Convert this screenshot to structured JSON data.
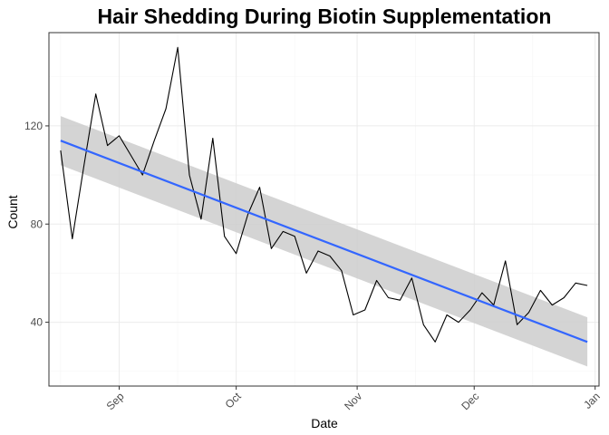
{
  "chart_data": {
    "type": "line",
    "title": "Hair Shedding During Biotin Supplementation",
    "xlabel": "Date",
    "ylabel": "Count",
    "x_ticks": [
      "Sep",
      "Oct",
      "Nov",
      "Dec",
      "Jan"
    ],
    "x_tick_dates": [
      "2023-09-01",
      "2023-10-01",
      "2023-11-01",
      "2023-12-01",
      "2024-01-01"
    ],
    "y_ticks": [
      40,
      80,
      120
    ],
    "xlim": [
      "2023-08-14",
      "2024-01-02"
    ],
    "ylim": [
      14,
      158
    ],
    "grid": true,
    "series": [
      {
        "type": "line",
        "color": "#000000",
        "x": [
          "2023-08-17",
          "2023-08-20",
          "2023-08-23",
          "2023-08-26",
          "2023-08-29",
          "2023-09-01",
          "2023-09-04",
          "2023-09-07",
          "2023-09-10",
          "2023-09-13",
          "2023-09-16",
          "2023-09-19",
          "2023-09-22",
          "2023-09-25",
          "2023-09-28",
          "2023-10-01",
          "2023-10-04",
          "2023-10-07",
          "2023-10-10",
          "2023-10-13",
          "2023-10-16",
          "2023-10-19",
          "2023-10-22",
          "2023-10-25",
          "2023-10-28",
          "2023-10-31",
          "2023-11-03",
          "2023-11-06",
          "2023-11-09",
          "2023-11-12",
          "2023-11-15",
          "2023-11-18",
          "2023-11-21",
          "2023-11-24",
          "2023-11-27",
          "2023-11-30",
          "2023-12-03",
          "2023-12-06",
          "2023-12-09",
          "2023-12-12",
          "2023-12-15",
          "2023-12-18",
          "2023-12-21",
          "2023-12-24",
          "2023-12-27",
          "2023-12-30"
        ],
        "y": [
          110,
          74,
          104,
          133,
          112,
          116,
          108,
          100,
          114,
          127,
          152,
          100,
          82,
          115,
          75,
          68,
          84,
          95,
          70,
          77,
          75,
          60,
          69,
          67,
          61,
          43,
          45,
          57,
          50,
          49,
          58,
          39,
          32,
          43,
          40,
          45,
          52,
          47,
          65,
          39,
          44,
          53,
          47,
          50,
          56,
          55
        ]
      },
      {
        "type": "trend",
        "color": "#3366ff",
        "band_color": "#cccccc",
        "x": [
          "2023-08-17",
          "2023-12-30"
        ],
        "y": [
          114,
          32
        ],
        "lower": [
          104,
          22
        ],
        "upper": [
          124,
          42
        ]
      }
    ]
  }
}
